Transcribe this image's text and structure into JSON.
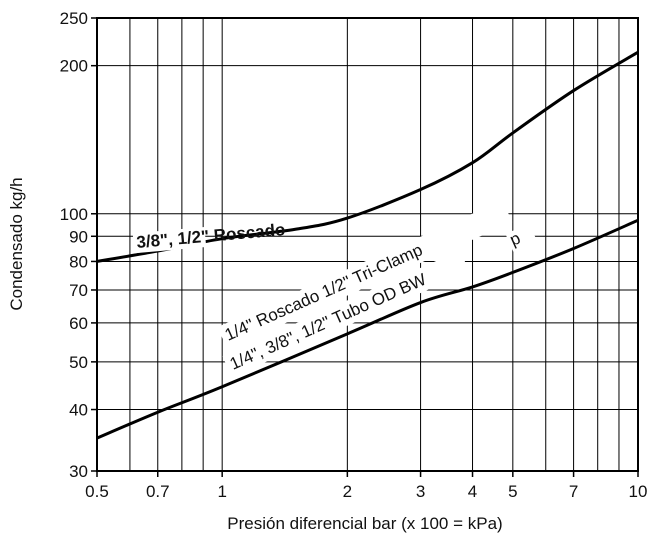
{
  "chart_data": {
    "type": "line",
    "title": "",
    "xlabel": "Presión diferencial bar (x 100 = kPa)",
    "ylabel": "Condensado kg/h",
    "xscale": "log",
    "yscale": "log",
    "xlim": [
      0.5,
      10
    ],
    "ylim": [
      30,
      250
    ],
    "grid": true,
    "x_ticks": [
      0.5,
      0.7,
      1,
      2,
      3,
      4,
      5,
      7,
      10
    ],
    "x_tick_labels": [
      "0.5",
      "0.7",
      "1",
      "2",
      "3",
      "4",
      "5",
      "7",
      "10"
    ],
    "x_gridlines": [
      0.6,
      0.7,
      0.8,
      0.9,
      1,
      2,
      3,
      4,
      5,
      6,
      7,
      8,
      9
    ],
    "y_ticks": [
      30,
      40,
      50,
      60,
      70,
      80,
      90,
      100,
      200,
      250
    ],
    "y_tick_labels": [
      "30",
      "40",
      "50",
      "60",
      "70",
      "80",
      "90",
      "100",
      "200",
      "250"
    ],
    "y_gridlines": [
      40,
      50,
      60,
      70,
      80,
      90,
      100,
      200
    ],
    "series": [
      {
        "name": "3/8\", 1/2\" Roscado",
        "x": [
          0.5,
          0.7,
          1,
          1.5,
          2,
          3,
          4,
          5,
          7,
          10
        ],
        "values": [
          80,
          84,
          89,
          93,
          98,
          112,
          127,
          146,
          178,
          213
        ]
      },
      {
        "name": "1/4\" Roscado 1/2\" Tri-Clamp",
        "x": [
          0.5,
          0.7,
          1,
          2,
          3,
          4,
          5,
          7,
          10
        ],
        "values": [
          35,
          39.5,
          44.5,
          57,
          66,
          71,
          76,
          85,
          97
        ]
      }
    ],
    "annotations": [
      "3/8\", 1/2\"  Roscado",
      "1/4\" Roscado 1/2\" Tri-Clamp",
      "1/4\", 3/8\", 1/2\" Tubo OD BW",
      "p"
    ]
  }
}
